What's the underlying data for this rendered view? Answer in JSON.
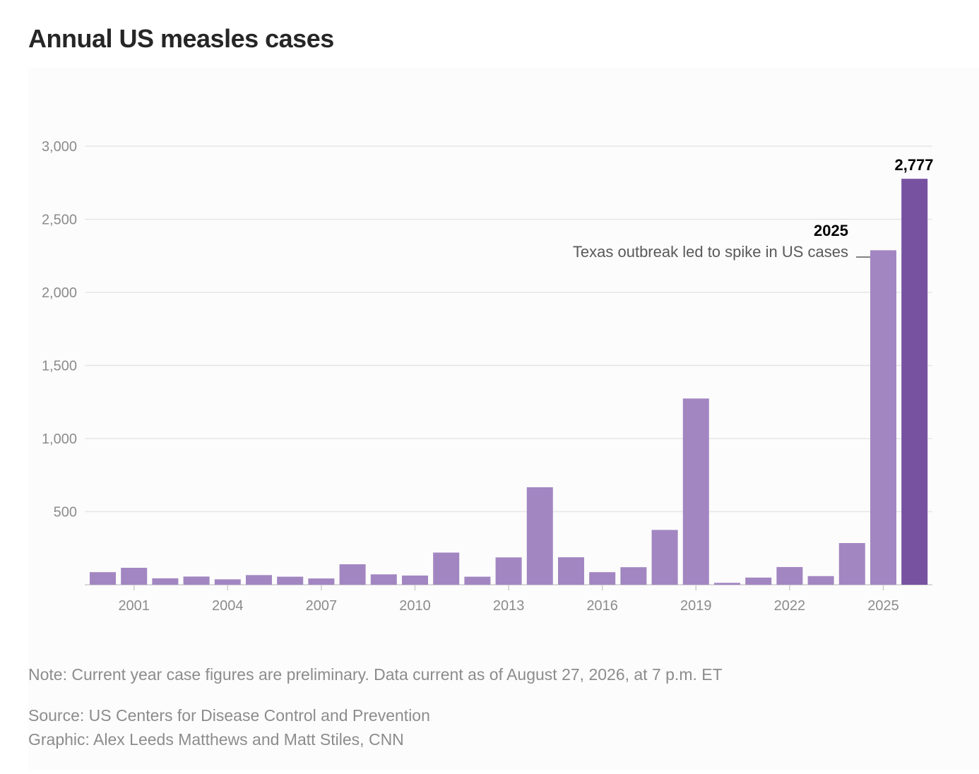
{
  "header": {
    "title": "Annual US measles cases"
  },
  "footer": {
    "note": "Note: Current year case figures are preliminary. Data current as of August 27, 2026, at 7 p.m. ET",
    "source": "Source: US Centers for Disease Control and Prevention",
    "graphic": "Graphic: Alex Leeds Matthews and Matt Stiles, CNN"
  },
  "colors": {
    "bar": "#a286c1",
    "bar_highlight": "#7652a1",
    "grid": "#e6e6e6",
    "baseline": "#cccccc",
    "annotation_line": "#595959"
  },
  "chart_data": {
    "type": "bar",
    "title": "Annual US measles cases",
    "xlabel": "",
    "ylabel": "",
    "ylim": [
      0,
      3000
    ],
    "yticks": [
      500,
      1000,
      1500,
      2000,
      2500,
      3000
    ],
    "ytick_labels": [
      "500",
      "1,000",
      "1,500",
      "2,000",
      "2,500",
      "3,000"
    ],
    "xtick_labels": [
      "2001",
      "2004",
      "2007",
      "2010",
      "2013",
      "2016",
      "2019",
      "2022",
      "2025"
    ],
    "xtick_years": [
      2001,
      2004,
      2007,
      2010,
      2013,
      2016,
      2019,
      2022,
      2025
    ],
    "grid": true,
    "categories": [
      2000,
      2001,
      2002,
      2003,
      2004,
      2005,
      2006,
      2007,
      2008,
      2009,
      2010,
      2011,
      2012,
      2013,
      2014,
      2015,
      2016,
      2017,
      2018,
      2019,
      2020,
      2021,
      2022,
      2023,
      2024,
      2025,
      2026
    ],
    "values": [
      86,
      116,
      44,
      56,
      37,
      66,
      55,
      43,
      140,
      71,
      63,
      220,
      55,
      187,
      667,
      188,
      86,
      120,
      375,
      1274,
      13,
      49,
      121,
      59,
      285,
      2288,
      2777
    ],
    "highlight_year": 2026,
    "value_label": "2,777",
    "annotation": {
      "year": 2025,
      "title": "2025",
      "text": "Texas outbreak led to spike in US cases"
    }
  }
}
